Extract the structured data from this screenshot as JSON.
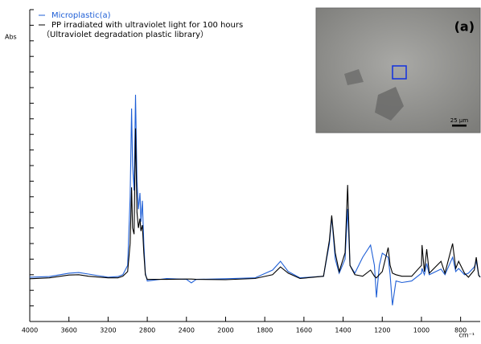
{
  "chart_data": {
    "type": "line",
    "y_label": "Abs",
    "x_label": "cm⁻¹",
    "x": [
      4000,
      3800,
      3600,
      3500,
      3400,
      3200,
      3100,
      3050,
      3000,
      2975,
      2960,
      2950,
      2935,
      2920,
      2905,
      2890,
      2875,
      2865,
      2850,
      2835,
      2820,
      2800,
      2600,
      2400,
      2350,
      2300,
      2000,
      1850,
      1760,
      1720,
      1680,
      1620,
      1500,
      1470,
      1458,
      1440,
      1420,
      1390,
      1377,
      1365,
      1340,
      1300,
      1260,
      1240,
      1230,
      1215,
      1200,
      1170,
      1160,
      1148,
      1130,
      1100,
      1050,
      1000,
      997,
      985,
      973,
      960,
      900,
      880,
      841,
      825,
      810,
      780,
      760,
      730,
      720,
      708,
      700
    ],
    "series": [
      {
        "name": "Microplastic(a)",
        "color": "#1f5fd6",
        "values": [
          14.2,
          14.4,
          15.5,
          15.7,
          15.2,
          14.2,
          14.4,
          15.0,
          18.0,
          40.0,
          68.3,
          50.0,
          42.0,
          72.7,
          45.0,
          36.0,
          41.2,
          32.0,
          38.7,
          25.0,
          15.5,
          13.0,
          13.8,
          13.5,
          12.4,
          13.5,
          13.7,
          14.0,
          16.5,
          19.3,
          16.0,
          14.0,
          14.5,
          25.0,
          33.5,
          20.0,
          15.5,
          20.0,
          36.1,
          18.0,
          15.5,
          20.6,
          24.5,
          18.0,
          7.7,
          18.0,
          21.9,
          20.6,
          15.0,
          5.2,
          13.0,
          12.5,
          13.0,
          15.5,
          17.0,
          15.0,
          18.6,
          15.0,
          16.8,
          15.0,
          20.6,
          16.0,
          17.0,
          15.0,
          15.5,
          17.5,
          19.3,
          15.0,
          14.2
        ]
      },
      {
        "name": "PP irradiated with ultraviolet light for 100 hours",
        "color": "#000000",
        "values": [
          13.7,
          14.0,
          14.9,
          15.0,
          14.5,
          14.0,
          14.0,
          14.5,
          16.0,
          25.0,
          43.0,
          30.0,
          28.0,
          61.9,
          35.0,
          30.0,
          33.0,
          29.0,
          30.9,
          22.0,
          15.0,
          13.5,
          13.5,
          13.6,
          13.6,
          13.5,
          13.4,
          13.8,
          15.0,
          17.5,
          15.5,
          13.8,
          14.5,
          26.0,
          34.0,
          22.0,
          16.0,
          22.0,
          43.8,
          18.0,
          15.0,
          14.5,
          16.5,
          14.5,
          14.0,
          15.0,
          16.0,
          23.7,
          18.0,
          15.5,
          15.0,
          14.5,
          14.5,
          18.0,
          24.5,
          16.0,
          23.2,
          15.5,
          19.3,
          15.5,
          25.0,
          17.0,
          19.3,
          15.5,
          14.2,
          16.5,
          20.6,
          14.8,
          14.2
        ]
      }
    ],
    "legend_note": "（Ultraviolet degradation plastic library）",
    "legend": "upper left",
    "xlim": [
      4000,
      700
    ],
    "x_break": 2000,
    "x_expand": 2,
    "xticks": [
      4000,
      3600,
      3200,
      2800,
      2400,
      2000,
      1800,
      1600,
      1400,
      1200,
      1000,
      800
    ],
    "ylim": [
      0,
      100
    ],
    "yticks": [
      0,
      5,
      10,
      15,
      20,
      25,
      30,
      35,
      40,
      45,
      50,
      55,
      60,
      65,
      70,
      75,
      80,
      85,
      90,
      95,
      100
    ],
    "inset_label": "(a)",
    "inset_scale_label": "25 µm"
  }
}
